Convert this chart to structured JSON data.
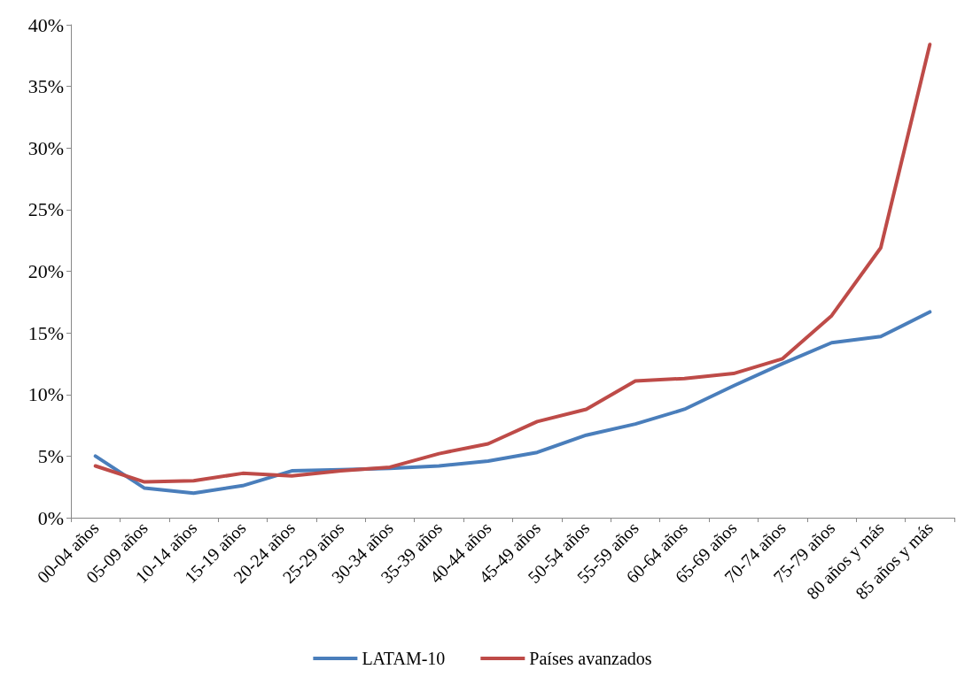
{
  "chart_data": {
    "type": "line",
    "categories": [
      "00-04 años",
      "05-09 años",
      "10-14 años",
      "15-19 años",
      "20-24 años",
      "25-29 años",
      "30-34 años",
      "35-39 años",
      "40-44 años",
      "45-49 años",
      "50-54 años",
      "55-59 años",
      "60-64 años",
      "65-69 años",
      "70-74 años",
      "75-79 años",
      "80 años y más",
      "85 años y más"
    ],
    "series": [
      {
        "name": "LATAM-10",
        "color": "#4a7ebb",
        "values": [
          5.0,
          2.4,
          2.0,
          2.6,
          3.8,
          3.9,
          4.0,
          4.2,
          4.6,
          5.3,
          6.7,
          7.6,
          8.8,
          10.7,
          12.5,
          14.2,
          14.7,
          16.7
        ]
      },
      {
        "name": "Países avanzados",
        "color": "#be4b48",
        "values": [
          4.2,
          2.9,
          3.0,
          3.6,
          3.4,
          3.8,
          4.1,
          5.2,
          6.0,
          7.8,
          8.8,
          11.1,
          11.3,
          11.7,
          12.9,
          16.4,
          21.9,
          38.4
        ]
      }
    ],
    "ylim": [
      0,
      40
    ],
    "yticks": [
      {
        "value": 0,
        "label": "0%"
      },
      {
        "value": 5,
        "label": "5%"
      },
      {
        "value": 10,
        "label": "10%"
      },
      {
        "value": 15,
        "label": "15%"
      },
      {
        "value": 20,
        "label": "20%"
      },
      {
        "value": 25,
        "label": "25%"
      },
      {
        "value": 30,
        "label": "30%"
      },
      {
        "value": 35,
        "label": "35%"
      },
      {
        "value": 40,
        "label": "40%"
      }
    ],
    "grid": false,
    "legend": "bottom",
    "marker": "none",
    "line_style": "solid"
  }
}
